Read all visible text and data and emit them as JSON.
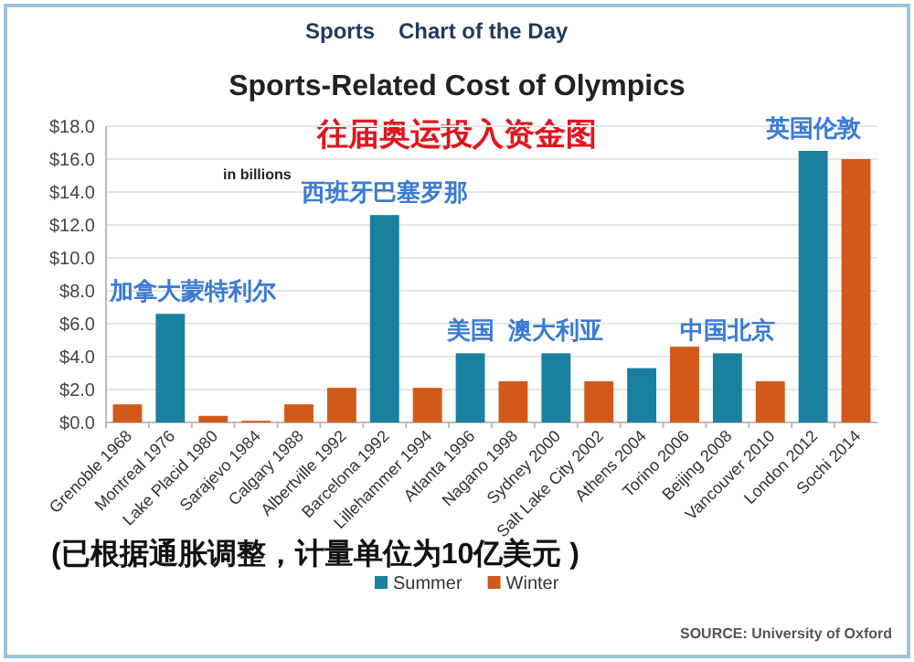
{
  "chart_data": {
    "type": "bar",
    "title": "Sports-Related Cost of Olympics",
    "subtitle": "往届奥运投入资金图",
    "categories": [
      "Grenoble 1968",
      "Montreal 1976",
      "Lake Placid 1980",
      "Sarajevo 1984",
      "Calgary 1988",
      "Albertville 1992",
      "Barcelona 1992",
      "Lillehammer 1994",
      "Atlanta 1996",
      "Nagano 1998",
      "Sydney 2000",
      "Salt Lake City 2002",
      "Athens 2004",
      "Torino 2006",
      "Beijing 2008",
      "Vancouver 2010",
      "London 2012",
      "Sochi 2014"
    ],
    "series": [
      {
        "name": "Summer",
        "color": "#1a80a0",
        "values": [
          null,
          6.6,
          null,
          null,
          null,
          null,
          12.6,
          null,
          4.2,
          null,
          4.2,
          null,
          3.3,
          null,
          4.2,
          null,
          16.5,
          null
        ]
      },
      {
        "name": "Winter",
        "color": "#d2591a",
        "values": [
          1.1,
          null,
          0.4,
          0.1,
          1.1,
          2.1,
          null,
          2.1,
          null,
          2.5,
          null,
          2.5,
          null,
          4.6,
          null,
          2.5,
          null,
          16.0
        ]
      }
    ],
    "ylim": [
      0,
      18
    ],
    "yticks": [
      {
        "value": 0,
        "label": "$0.0"
      },
      {
        "value": 2,
        "label": "$2.0"
      },
      {
        "value": 4,
        "label": "$4.0"
      },
      {
        "value": 6,
        "label": "$6.0"
      },
      {
        "value": 8,
        "label": "$8.0"
      },
      {
        "value": 10,
        "label": "$10.0"
      },
      {
        "value": 12,
        "label": "$12.0"
      },
      {
        "value": 14,
        "label": "$14.0"
      },
      {
        "value": 16,
        "label": "$16.0"
      },
      {
        "value": 18,
        "label": "$18.0"
      }
    ],
    "grid": "y",
    "legend": "bottom",
    "annotations": [
      "Sports",
      "Chart of the Day",
      "in billions",
      "(已根据通胀调整，计量单位为10亿美元 )",
      "SOURCE: University of Oxford",
      {
        "text": "加拿大蒙特利尔",
        "x": "Montreal 1976",
        "y": 6.6
      },
      {
        "text": "西班牙巴塞罗那",
        "x": "Barcelona 1992",
        "y": 12.6
      },
      {
        "text": "美国",
        "x": "Atlanta 1996",
        "y": 4.2
      },
      {
        "text": "澳大利亚",
        "x": "Sydney 2000",
        "y": 4.2
      },
      {
        "text": "中国北京",
        "x": "Beijing 2008",
        "y": 4.2
      },
      {
        "text": "英国伦敦",
        "x": "London 2012",
        "y": 16.5
      }
    ]
  }
}
